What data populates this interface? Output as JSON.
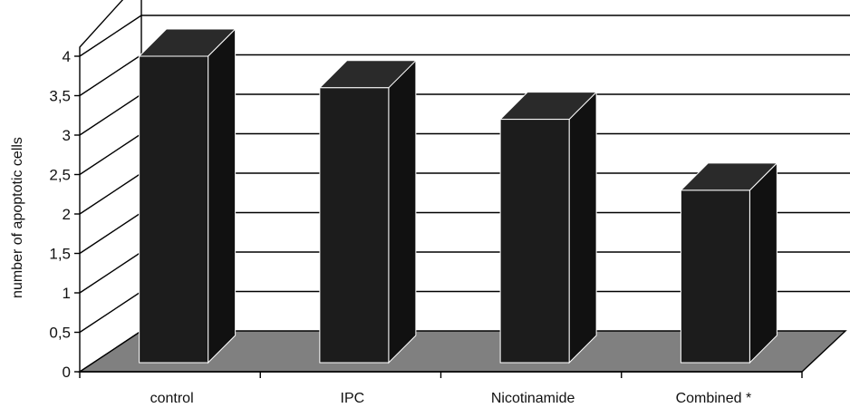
{
  "chart_data": {
    "type": "bar",
    "style": "3d-column",
    "categories": [
      "control",
      "IPC",
      "Nicotinamide",
      "Combined *"
    ],
    "values": [
      4.0,
      3.6,
      3.2,
      2.3
    ],
    "ylabel": "number of apoptotic cells",
    "xlabel": "",
    "title": "",
    "ylim": [
      0,
      4
    ],
    "yticks": [
      "0",
      "0,5",
      "1",
      "1,5",
      "2",
      "2,5",
      "3",
      "3,5",
      "4"
    ],
    "grid": true,
    "legend": "none",
    "colors": {
      "bar_front": "#1c1c1c",
      "bar_side": "#111111",
      "bar_top": "#2a2a2a",
      "floor": "#808080",
      "grid": "#000000",
      "background": "#ffffff"
    }
  }
}
